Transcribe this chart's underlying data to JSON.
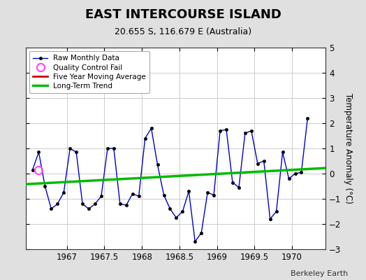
{
  "title": "EAST INTERCOURSE ISLAND",
  "subtitle": "20.655 S, 116.679 E (Australia)",
  "ylabel": "Temperature Anomaly (°C)",
  "credit": "Berkeley Earth",
  "xlim": [
    1966.45,
    1970.45
  ],
  "ylim": [
    -3,
    5
  ],
  "yticks": [
    -3,
    -2,
    -1,
    0,
    1,
    2,
    3,
    4,
    5
  ],
  "xticks": [
    1967,
    1967.5,
    1968,
    1968.5,
    1969,
    1969.5,
    1970
  ],
  "bg_color": "#e0e0e0",
  "plot_bg_color": "#ffffff",
  "raw_x": [
    1966.542,
    1966.625,
    1966.708,
    1966.792,
    1966.875,
    1966.958,
    1967.042,
    1967.125,
    1967.208,
    1967.292,
    1967.375,
    1967.458,
    1967.542,
    1967.625,
    1967.708,
    1967.792,
    1967.875,
    1967.958,
    1968.042,
    1968.125,
    1968.208,
    1968.292,
    1968.375,
    1968.458,
    1968.542,
    1968.625,
    1968.708,
    1968.792,
    1968.875,
    1968.958,
    1969.042,
    1969.125,
    1969.208,
    1969.292,
    1969.375,
    1969.458,
    1969.542,
    1969.625,
    1969.708,
    1969.792,
    1969.875,
    1969.958,
    1970.042,
    1970.125,
    1970.208
  ],
  "raw_y": [
    0.15,
    0.85,
    -0.5,
    -1.4,
    -1.2,
    -0.75,
    1.0,
    0.85,
    -1.2,
    -1.4,
    -1.2,
    -0.9,
    1.0,
    1.0,
    -1.2,
    -1.25,
    -0.8,
    -0.9,
    1.4,
    1.8,
    0.35,
    -0.85,
    -1.4,
    -1.75,
    -1.5,
    -0.7,
    -2.7,
    -2.35,
    -0.75,
    -0.85,
    1.7,
    1.75,
    -0.35,
    -0.55,
    1.6,
    1.7,
    0.4,
    0.5,
    -1.8,
    -1.5,
    0.85,
    -0.2,
    0.0,
    0.05,
    2.2
  ],
  "qc_fail_x": [
    1966.625
  ],
  "qc_fail_y": [
    0.15
  ],
  "trend_x": [
    1966.45,
    1970.45
  ],
  "trend_y": [
    -0.42,
    0.22
  ],
  "line_color": "#0000cc",
  "marker_color": "#000000",
  "trend_color": "#00bb00",
  "moving_avg_color": "#cc0000",
  "qc_color": "#ff44ff"
}
